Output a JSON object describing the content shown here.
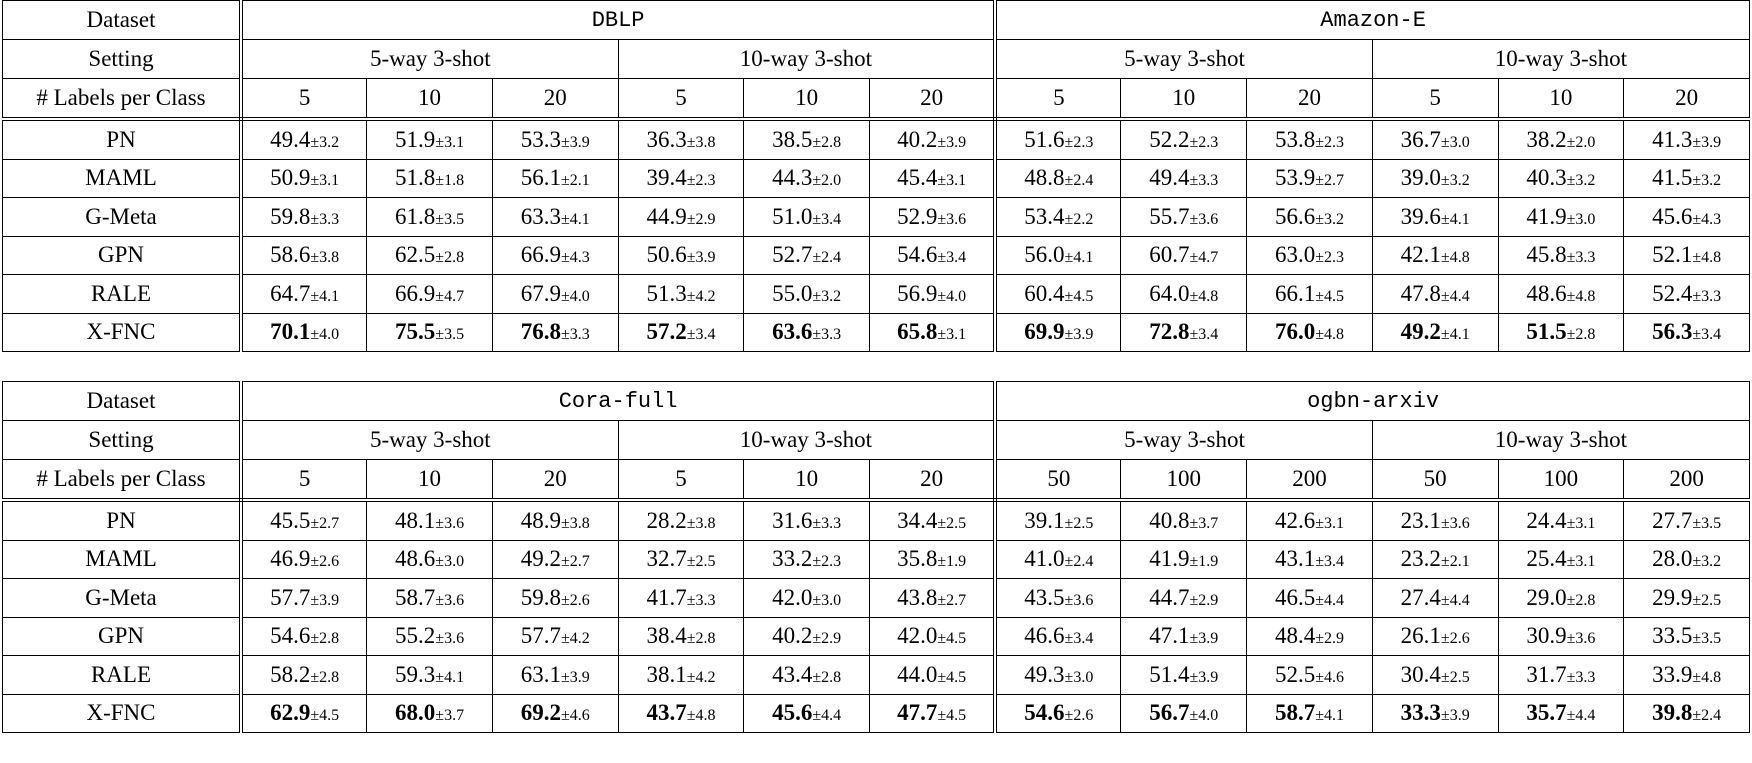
{
  "tables": [
    {
      "row_labels": {
        "dataset": "Dataset",
        "setting": "Setting",
        "labels": "# Labels per Class"
      },
      "datasets": [
        "DBLP",
        "Amazon-E"
      ],
      "settings": [
        "5-way 3-shot",
        "10-way 3-shot",
        "5-way 3-shot",
        "10-way 3-shot"
      ],
      "label_counts": [
        "5",
        "10",
        "20",
        "5",
        "10",
        "20",
        "5",
        "10",
        "20",
        "5",
        "10",
        "20"
      ],
      "rows": [
        {
          "method": "PN",
          "cells": [
            [
              "49.4",
              "±3.2"
            ],
            [
              "51.9",
              "±3.1"
            ],
            [
              "53.3",
              "±3.9"
            ],
            [
              "36.3",
              "±3.8"
            ],
            [
              "38.5",
              "±2.8"
            ],
            [
              "40.2",
              "±3.9"
            ],
            [
              "51.6",
              "±2.3"
            ],
            [
              "52.2",
              "±2.3"
            ],
            [
              "53.8",
              "±2.3"
            ],
            [
              "36.7",
              "±3.0"
            ],
            [
              "38.2",
              "±2.0"
            ],
            [
              "41.3",
              "±3.9"
            ]
          ]
        },
        {
          "method": "MAML",
          "cells": [
            [
              "50.9",
              "±3.1"
            ],
            [
              "51.8",
              "±1.8"
            ],
            [
              "56.1",
              "±2.1"
            ],
            [
              "39.4",
              "±2.3"
            ],
            [
              "44.3",
              "±2.0"
            ],
            [
              "45.4",
              "±3.1"
            ],
            [
              "48.8",
              "±2.4"
            ],
            [
              "49.4",
              "±3.3"
            ],
            [
              "53.9",
              "±2.7"
            ],
            [
              "39.0",
              "±3.2"
            ],
            [
              "40.3",
              "±3.2"
            ],
            [
              "41.5",
              "±3.2"
            ]
          ]
        },
        {
          "method": "G-Meta",
          "cells": [
            [
              "59.8",
              "±3.3"
            ],
            [
              "61.8",
              "±3.5"
            ],
            [
              "63.3",
              "±4.1"
            ],
            [
              "44.9",
              "±2.9"
            ],
            [
              "51.0",
              "±3.4"
            ],
            [
              "52.9",
              "±3.6"
            ],
            [
              "53.4",
              "±2.2"
            ],
            [
              "55.7",
              "±3.6"
            ],
            [
              "56.6",
              "±3.2"
            ],
            [
              "39.6",
              "±4.1"
            ],
            [
              "41.9",
              "±3.0"
            ],
            [
              "45.6",
              "±4.3"
            ]
          ]
        },
        {
          "method": "GPN",
          "cells": [
            [
              "58.6",
              "±3.8"
            ],
            [
              "62.5",
              "±2.8"
            ],
            [
              "66.9",
              "±4.3"
            ],
            [
              "50.6",
              "±3.9"
            ],
            [
              "52.7",
              "±2.4"
            ],
            [
              "54.6",
              "±3.4"
            ],
            [
              "56.0",
              "±4.1"
            ],
            [
              "60.7",
              "±4.7"
            ],
            [
              "63.0",
              "±2.3"
            ],
            [
              "42.1",
              "±4.8"
            ],
            [
              "45.8",
              "±3.3"
            ],
            [
              "52.1",
              "±4.8"
            ]
          ]
        },
        {
          "method": "RALE",
          "cells": [
            [
              "64.7",
              "±4.1"
            ],
            [
              "66.9",
              "±4.7"
            ],
            [
              "67.9",
              "±4.0"
            ],
            [
              "51.3",
              "±4.2"
            ],
            [
              "55.0",
              "±3.2"
            ],
            [
              "56.9",
              "±4.0"
            ],
            [
              "60.4",
              "±4.5"
            ],
            [
              "64.0",
              "±4.8"
            ],
            [
              "66.1",
              "±4.5"
            ],
            [
              "47.8",
              "±4.4"
            ],
            [
              "48.6",
              "±4.8"
            ],
            [
              "52.4",
              "±3.3"
            ]
          ]
        },
        {
          "method": "X-FNC",
          "bold": true,
          "cells": [
            [
              "70.1",
              "±4.0"
            ],
            [
              "75.5",
              "±3.5"
            ],
            [
              "76.8",
              "±3.3"
            ],
            [
              "57.2",
              "±3.4"
            ],
            [
              "63.6",
              "±3.3"
            ],
            [
              "65.8",
              "±3.1"
            ],
            [
              "69.9",
              "±3.9"
            ],
            [
              "72.8",
              "±3.4"
            ],
            [
              "76.0",
              "±4.8"
            ],
            [
              "49.2",
              "±4.1"
            ],
            [
              "51.5",
              "±2.8"
            ],
            [
              "56.3",
              "±3.4"
            ]
          ]
        }
      ]
    },
    {
      "row_labels": {
        "dataset": "Dataset",
        "setting": "Setting",
        "labels": "# Labels per Class"
      },
      "datasets": [
        "Cora-full",
        "ogbn-arxiv"
      ],
      "settings": [
        "5-way 3-shot",
        "10-way 3-shot",
        "5-way 3-shot",
        "10-way 3-shot"
      ],
      "label_counts": [
        "5",
        "10",
        "20",
        "5",
        "10",
        "20",
        "50",
        "100",
        "200",
        "50",
        "100",
        "200"
      ],
      "rows": [
        {
          "method": "PN",
          "cells": [
            [
              "45.5",
              "±2.7"
            ],
            [
              "48.1",
              "±3.6"
            ],
            [
              "48.9",
              "±3.8"
            ],
            [
              "28.2",
              "±3.8"
            ],
            [
              "31.6",
              "±3.3"
            ],
            [
              "34.4",
              "±2.5"
            ],
            [
              "39.1",
              "±2.5"
            ],
            [
              "40.8",
              "±3.7"
            ],
            [
              "42.6",
              "±3.1"
            ],
            [
              "23.1",
              "±3.6"
            ],
            [
              "24.4",
              "±3.1"
            ],
            [
              "27.7",
              "±3.5"
            ]
          ]
        },
        {
          "method": "MAML",
          "cells": [
            [
              "46.9",
              "±2.6"
            ],
            [
              "48.6",
              "±3.0"
            ],
            [
              "49.2",
              "±2.7"
            ],
            [
              "32.7",
              "±2.5"
            ],
            [
              "33.2",
              "±2.3"
            ],
            [
              "35.8",
              "±1.9"
            ],
            [
              "41.0",
              "±2.4"
            ],
            [
              "41.9",
              "±1.9"
            ],
            [
              "43.1",
              "±3.4"
            ],
            [
              "23.2",
              "±2.1"
            ],
            [
              "25.4",
              "±3.1"
            ],
            [
              "28.0",
              "±3.2"
            ]
          ]
        },
        {
          "method": "G-Meta",
          "cells": [
            [
              "57.7",
              "±3.9"
            ],
            [
              "58.7",
              "±3.6"
            ],
            [
              "59.8",
              "±2.6"
            ],
            [
              "41.7",
              "±3.3"
            ],
            [
              "42.0",
              "±3.0"
            ],
            [
              "43.8",
              "±2.7"
            ],
            [
              "43.5",
              "±3.6"
            ],
            [
              "44.7",
              "±2.9"
            ],
            [
              "46.5",
              "±4.4"
            ],
            [
              "27.4",
              "±4.4"
            ],
            [
              "29.0",
              "±2.8"
            ],
            [
              "29.9",
              "±2.5"
            ]
          ]
        },
        {
          "method": "GPN",
          "cells": [
            [
              "54.6",
              "±2.8"
            ],
            [
              "55.2",
              "±3.6"
            ],
            [
              "57.7",
              "±4.2"
            ],
            [
              "38.4",
              "±2.8"
            ],
            [
              "40.2",
              "±2.9"
            ],
            [
              "42.0",
              "±4.5"
            ],
            [
              "46.6",
              "±3.4"
            ],
            [
              "47.1",
              "±3.9"
            ],
            [
              "48.4",
              "±2.9"
            ],
            [
              "26.1",
              "±2.6"
            ],
            [
              "30.9",
              "±3.6"
            ],
            [
              "33.5",
              "±3.5"
            ]
          ]
        },
        {
          "method": "RALE",
          "cells": [
            [
              "58.2",
              "±2.8"
            ],
            [
              "59.3",
              "±4.1"
            ],
            [
              "63.1",
              "±3.9"
            ],
            [
              "38.1",
              "±4.2"
            ],
            [
              "43.4",
              "±2.8"
            ],
            [
              "44.0",
              "±4.5"
            ],
            [
              "49.3",
              "±3.0"
            ],
            [
              "51.4",
              "±3.9"
            ],
            [
              "52.5",
              "±4.6"
            ],
            [
              "30.4",
              "±2.5"
            ],
            [
              "31.7",
              "±3.3"
            ],
            [
              "33.9",
              "±4.8"
            ]
          ]
        },
        {
          "method": "X-FNC",
          "bold": true,
          "cells": [
            [
              "62.9",
              "±4.5"
            ],
            [
              "68.0",
              "±3.7"
            ],
            [
              "69.2",
              "±4.6"
            ],
            [
              "43.7",
              "±4.8"
            ],
            [
              "45.6",
              "±4.4"
            ],
            [
              "47.7",
              "±4.5"
            ],
            [
              "54.6",
              "±2.6"
            ],
            [
              "56.7",
              "±4.0"
            ],
            [
              "58.7",
              "±4.1"
            ],
            [
              "33.3",
              "±3.9"
            ],
            [
              "35.7",
              "±4.4"
            ],
            [
              "39.8",
              "±2.4"
            ]
          ]
        }
      ]
    }
  ]
}
